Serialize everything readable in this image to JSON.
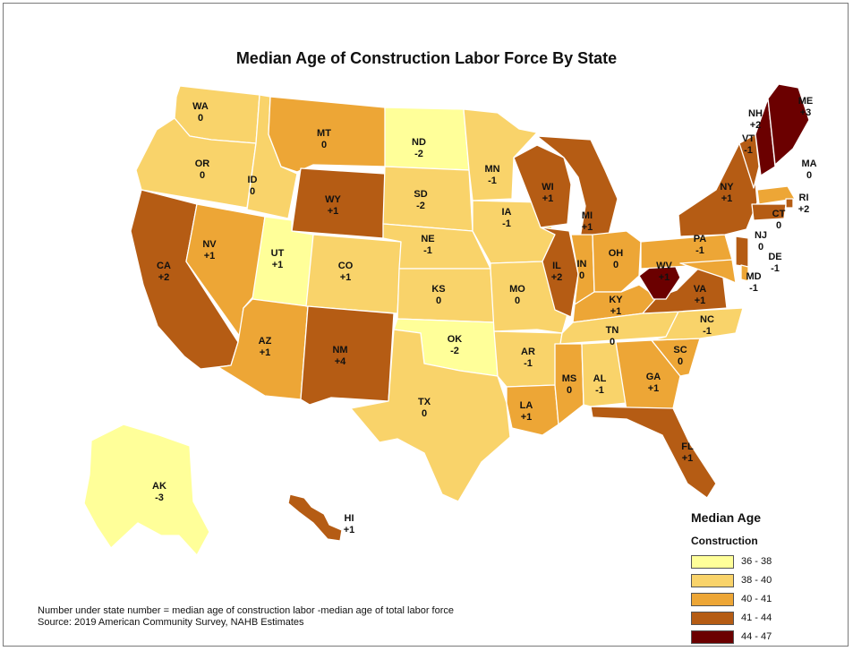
{
  "title": "Median Age of Construction Labor Force By State",
  "legend": {
    "title": "Median Age",
    "subtitle": "Construction",
    "classes": [
      {
        "label": "36 - 38",
        "color": "#ffff99"
      },
      {
        "label": "38 - 40",
        "color": "#f9d36a"
      },
      {
        "label": "40 - 41",
        "color": "#eda636"
      },
      {
        "label": "41 - 44",
        "color": "#b55c14"
      },
      {
        "label": "44 - 47",
        "color": "#6b0000"
      }
    ]
  },
  "footnote": {
    "line1": "Number under state number = median age of construction labor -median age of total labor force",
    "line2": "Source: 2019 American Community Survey, NAHB Estimates"
  },
  "states": [
    {
      "abbr": "WA",
      "diff": "0",
      "cls": 1
    },
    {
      "abbr": "OR",
      "diff": "0",
      "cls": 1
    },
    {
      "abbr": "CA",
      "diff": "+2",
      "cls": 3
    },
    {
      "abbr": "NV",
      "diff": "+1",
      "cls": 2
    },
    {
      "abbr": "ID",
      "diff": "0",
      "cls": 1
    },
    {
      "abbr": "MT",
      "diff": "0",
      "cls": 2
    },
    {
      "abbr": "WY",
      "diff": "+1",
      "cls": 3
    },
    {
      "abbr": "UT",
      "diff": "+1",
      "cls": 0
    },
    {
      "abbr": "AZ",
      "diff": "+1",
      "cls": 2
    },
    {
      "abbr": "CO",
      "diff": "+1",
      "cls": 1
    },
    {
      "abbr": "NM",
      "diff": "+4",
      "cls": 3
    },
    {
      "abbr": "ND",
      "diff": "-2",
      "cls": 0
    },
    {
      "abbr": "SD",
      "diff": "-2",
      "cls": 1
    },
    {
      "abbr": "NE",
      "diff": "-1",
      "cls": 1
    },
    {
      "abbr": "KS",
      "diff": "0",
      "cls": 1
    },
    {
      "abbr": "OK",
      "diff": "-2",
      "cls": 0
    },
    {
      "abbr": "TX",
      "diff": "0",
      "cls": 1
    },
    {
      "abbr": "MN",
      "diff": "-1",
      "cls": 1
    },
    {
      "abbr": "IA",
      "diff": "-1",
      "cls": 1
    },
    {
      "abbr": "MO",
      "diff": "0",
      "cls": 1
    },
    {
      "abbr": "AR",
      "diff": "-1",
      "cls": 1
    },
    {
      "abbr": "LA",
      "diff": "+1",
      "cls": 2
    },
    {
      "abbr": "WI",
      "diff": "+1",
      "cls": 3
    },
    {
      "abbr": "IL",
      "diff": "+2",
      "cls": 3
    },
    {
      "abbr": "MI",
      "diff": "+1",
      "cls": 3
    },
    {
      "abbr": "IN",
      "diff": "0",
      "cls": 2
    },
    {
      "abbr": "OH",
      "diff": "0",
      "cls": 2
    },
    {
      "abbr": "KY",
      "diff": "+1",
      "cls": 2
    },
    {
      "abbr": "TN",
      "diff": "0",
      "cls": 1
    },
    {
      "abbr": "MS",
      "diff": "0",
      "cls": 2
    },
    {
      "abbr": "AL",
      "diff": "-1",
      "cls": 1
    },
    {
      "abbr": "GA",
      "diff": "+1",
      "cls": 2
    },
    {
      "abbr": "FL",
      "diff": "+1",
      "cls": 3
    },
    {
      "abbr": "SC",
      "diff": "0",
      "cls": 2
    },
    {
      "abbr": "NC",
      "diff": "-1",
      "cls": 1
    },
    {
      "abbr": "VA",
      "diff": "+1",
      "cls": 3
    },
    {
      "abbr": "WV",
      "diff": "+1",
      "cls": 4
    },
    {
      "abbr": "PA",
      "diff": "-1",
      "cls": 2
    },
    {
      "abbr": "NY",
      "diff": "+1",
      "cls": 3
    },
    {
      "abbr": "VT",
      "diff": "-1",
      "cls": 3
    },
    {
      "abbr": "NH",
      "diff": "+2",
      "cls": 4
    },
    {
      "abbr": "ME",
      "diff": "+3",
      "cls": 4
    },
    {
      "abbr": "MA",
      "diff": "0",
      "cls": 2
    },
    {
      "abbr": "RI",
      "diff": "+2",
      "cls": 3
    },
    {
      "abbr": "CT",
      "diff": "0",
      "cls": 3
    },
    {
      "abbr": "NJ",
      "diff": "0",
      "cls": 3
    },
    {
      "abbr": "DE",
      "diff": "-1",
      "cls": 2
    },
    {
      "abbr": "MD",
      "diff": "-1",
      "cls": 2
    },
    {
      "abbr": "AK",
      "diff": "-3",
      "cls": 0
    },
    {
      "abbr": "HI",
      "diff": "+1",
      "cls": 3
    }
  ]
}
